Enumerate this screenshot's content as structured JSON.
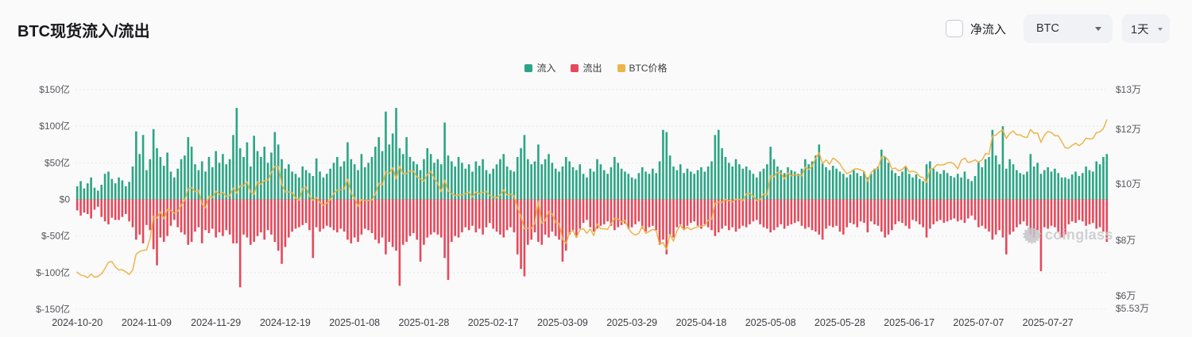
{
  "header": {
    "title": "BTC现货流入/流出"
  },
  "controls": {
    "net_flow_checkbox": {
      "label": "净流入",
      "checked": false
    },
    "coin_select": {
      "value": "BTC"
    },
    "interval_select": {
      "value": "1天"
    }
  },
  "watermark": {
    "text": "coinglass"
  },
  "chart_data": {
    "type": "bar+line",
    "start_date": "2024-10-20",
    "x_tick_interval_days": 20,
    "x_tick_labels": [
      "2024-10-20",
      "2024-11-09",
      "2024-11-29",
      "2024-12-19",
      "2025-01-08",
      "2025-01-28",
      "2025-02-17",
      "2025-03-09",
      "2025-03-29",
      "2025-04-18",
      "2025-05-08",
      "2025-05-28",
      "2025-06-17",
      "2025-07-07",
      "2025-07-27"
    ],
    "left_axis": {
      "unit": "亿",
      "range": [
        -150,
        150
      ],
      "ticks": [
        {
          "label": "$150亿",
          "value": 150
        },
        {
          "label": "$100亿",
          "value": 100
        },
        {
          "label": "$50亿",
          "value": 50
        },
        {
          "label": "$0",
          "value": 0
        },
        {
          "label": "$-50亿",
          "value": -50
        },
        {
          "label": "$-100亿",
          "value": -100
        },
        {
          "label": "$-150亿",
          "value": -150
        }
      ]
    },
    "right_axis": {
      "unit": "万",
      "ticks": [
        {
          "label": "$13万",
          "y": 113
        },
        {
          "label": "$12万",
          "y": 163
        },
        {
          "label": "$10万",
          "y": 232
        },
        {
          "label": "$8万",
          "y": 303
        },
        {
          "label": "$6万",
          "y": 373
        },
        {
          "label": "$5.53万",
          "y": 389
        }
      ]
    },
    "series": [
      {
        "name": "流入",
        "type": "bar",
        "color": "#2ca585",
        "axis": "left",
        "values": [
          18,
          25,
          15,
          22,
          30,
          16,
          12,
          20,
          35,
          38,
          28,
          22,
          30,
          26,
          18,
          24,
          45,
          93,
          62,
          88,
          40,
          55,
          96,
          70,
          58,
          46,
          64,
          38,
          30,
          42,
          55,
          60,
          85,
          72,
          48,
          40,
          52,
          38,
          58,
          44,
          66,
          50,
          62,
          48,
          55,
          88,
          125,
          70,
          58,
          78,
          45,
          87,
          66,
          58,
          72,
          50,
          64,
          92,
          75,
          55,
          42,
          48,
          38,
          35,
          30,
          45,
          40,
          36,
          32,
          56,
          38,
          30,
          35,
          42,
          50,
          58,
          45,
          52,
          78,
          55,
          48,
          40,
          62,
          44,
          50,
          58,
          72,
          85,
          66,
          120,
          75,
          90,
          125,
          70,
          62,
          85,
          58,
          52,
          48,
          40,
          55,
          70,
          62,
          50,
          55,
          48,
          105,
          60,
          52,
          45,
          58,
          50,
          42,
          48,
          38,
          52,
          46,
          55,
          40,
          35,
          42,
          48,
          55,
          62,
          45,
          40,
          38,
          58,
          70,
          88,
          55,
          48,
          52,
          75,
          48,
          55,
          62,
          50,
          42,
          38,
          45,
          58,
          52,
          44,
          40,
          48,
          35,
          30,
          42,
          38,
          55,
          48,
          40,
          35,
          44,
          58,
          50,
          42,
          38,
          35,
          30,
          28,
          36,
          44,
          38,
          35,
          42,
          36,
          52,
          95,
          92,
          60,
          45,
          40,
          48,
          36,
          42,
          38,
          35,
          40,
          44,
          38,
          45,
          52,
          88,
          95,
          70,
          58,
          50,
          45,
          55,
          48,
          42,
          45,
          40,
          35,
          30,
          38,
          42,
          48,
          72,
          55,
          45,
          40,
          36,
          44,
          40,
          38,
          35,
          42,
          55,
          48,
          52,
          60,
          75,
          50,
          44,
          40,
          46,
          42,
          38,
          35,
          30,
          34,
          40,
          36,
          32,
          38,
          30,
          35,
          42,
          45,
          68,
          58,
          50,
          40,
          36,
          32,
          38,
          44,
          35,
          30,
          34,
          28,
          25,
          48,
          52,
          42,
          38,
          35,
          40,
          36,
          32,
          30,
          35,
          30,
          38,
          28,
          25,
          32,
          52,
          44,
          55,
          58,
          95,
          60,
          48,
          100,
          42,
          55,
          48,
          40,
          36,
          34,
          38,
          62,
          45,
          50,
          35,
          40,
          44,
          38,
          42,
          36,
          30,
          30,
          28,
          34,
          38,
          32,
          36,
          45,
          40,
          38,
          52,
          48,
          58,
          62
        ]
      },
      {
        "name": "流出",
        "type": "bar",
        "color": "#e6495c",
        "axis": "left",
        "values": [
          -15,
          -22,
          -18,
          -20,
          -26,
          -14,
          -10,
          -24,
          -30,
          -34,
          -25,
          -28,
          -28,
          -24,
          -20,
          -30,
          -38,
          -55,
          -48,
          -60,
          -35,
          -42,
          -68,
          -90,
          -52,
          -58,
          -50,
          -36,
          -28,
          -38,
          -45,
          -48,
          -62,
          -58,
          -44,
          -38,
          -60,
          -42,
          -46,
          -40,
          -52,
          -45,
          -50,
          -42,
          -48,
          -60,
          -60,
          -120,
          -48,
          -52,
          -62,
          -58,
          -50,
          -45,
          -55,
          -42,
          -48,
          -58,
          -70,
          -88,
          -65,
          -52,
          -44,
          -40,
          -38,
          -35,
          -32,
          -42,
          -80,
          -38,
          -44,
          -40,
          -36,
          -38,
          -42,
          -45,
          -40,
          -44,
          -55,
          -60,
          -52,
          -58,
          -48,
          -40,
          -42,
          -46,
          -55,
          -60,
          -52,
          -75,
          -58,
          -65,
          -70,
          -118,
          -62,
          -58,
          -50,
          -46,
          -55,
          -85,
          -62,
          -52,
          -48,
          -45,
          -48,
          -52,
          -80,
          -110,
          -58,
          -50,
          -52,
          -45,
          -38,
          -42,
          -36,
          -45,
          -40,
          -48,
          -38,
          -32,
          -40,
          -44,
          -48,
          -52,
          -42,
          -38,
          -45,
          -75,
          -95,
          -105,
          -62,
          -55,
          -45,
          -58,
          -62,
          -48,
          -52,
          -44,
          -50,
          -55,
          -85,
          -70,
          -48,
          -42,
          -52,
          -40,
          -32,
          -28,
          -38,
          -44,
          -40,
          -36,
          -34,
          -30,
          -36,
          -42,
          -38,
          -35,
          -33,
          -40,
          -38,
          -34,
          -30,
          -40,
          -44,
          -38,
          -36,
          -42,
          -62,
          -55,
          -75,
          -48,
          -52,
          -38,
          -34,
          -40,
          -36,
          -32,
          -30,
          -36,
          -40,
          -34,
          -38,
          -42,
          -50,
          -45,
          -40,
          -36,
          -42,
          -38,
          -44,
          -40,
          -36,
          -38,
          -34,
          -30,
          -28,
          -34,
          -38,
          -40,
          -45,
          -42,
          -38,
          -34,
          -40,
          -36,
          -34,
          -32,
          -30,
          -36,
          -40,
          -38,
          -42,
          -44,
          -48,
          -55,
          -40,
          -36,
          -38,
          -36,
          -44,
          -48,
          -38,
          -32,
          -34,
          -38,
          -30,
          -32,
          -45,
          -30,
          -34,
          -36,
          -44,
          -52,
          -48,
          -42,
          -34,
          -30,
          -32,
          -36,
          -40,
          -28,
          -30,
          -34,
          -38,
          -52,
          -40,
          -34,
          -30,
          -28,
          -32,
          -30,
          -28,
          -26,
          -30,
          -28,
          -32,
          -26,
          -22,
          -28,
          -38,
          -36,
          -40,
          -44,
          -55,
          -48,
          -42,
          -52,
          -75,
          -48,
          -44,
          -38,
          -34,
          -30,
          -36,
          -48,
          -52,
          -42,
          -98,
          -38,
          -40,
          -36,
          -38,
          -44,
          -52,
          -48,
          -34,
          -30,
          -32,
          -28,
          -30,
          -36,
          -34,
          -32,
          -40,
          -38,
          -44,
          -58
        ]
      },
      {
        "name": "BTC价格",
        "type": "line",
        "color": "#edb44a",
        "axis": "right",
        "values": [
          6.85,
          6.75,
          6.72,
          6.65,
          6.78,
          6.67,
          6.7,
          6.79,
          6.98,
          7.21,
          7.23,
          7.03,
          6.93,
          6.94,
          6.86,
          6.77,
          6.93,
          7.5,
          7.59,
          7.64,
          7.65,
          8.06,
          8.87,
          8.8,
          9.03,
          8.77,
          9.11,
          9.08,
          8.98,
          9.05,
          9.26,
          9.45,
          9.85,
          9.9,
          9.75,
          9.8,
          9.3,
          9.17,
          9.59,
          9.54,
          9.77,
          9.65,
          9.72,
          9.58,
          9.6,
          9.88,
          9.7,
          9.96,
          9.97,
          10.11,
          9.74,
          9.65,
          10.11,
          10.02,
          10.15,
          10.16,
          10.45,
          10.66,
          10.66,
          10.02,
          9.74,
          9.74,
          9.72,
          9.52,
          9.44,
          9.86,
          9.92,
          9.59,
          9.44,
          9.54,
          9.36,
          9.26,
          9.34,
          9.46,
          9.69,
          9.81,
          9.82,
          9.84,
          10.21,
          9.7,
          9.52,
          9.22,
          9.47,
          9.44,
          9.43,
          9.45,
          9.66,
          10.05,
          9.99,
          10.47,
          10.41,
          10.62,
          10.21,
          10.67,
          10.39,
          10.4,
          10.49,
          10.49,
          10.28,
          10.21,
          10.13,
          10.37,
          10.48,
          10.23,
          10.05,
          9.75,
          10.17,
          9.77,
          9.68,
          9.61,
          9.63,
          9.64,
          9.68,
          9.74,
          9.56,
          9.74,
          9.68,
          9.72,
          9.76,
          9.61,
          9.56,
          9.53,
          9.63,
          9.81,
          9.63,
          9.66,
          9.61,
          9.17,
          8.87,
          8.41,
          8.44,
          8.43,
          8.61,
          9.41,
          8.61,
          8.71,
          9.03,
          8.96,
          8.64,
          8.61,
          8.05,
          7.88,
          8.27,
          8.36,
          8.1,
          8.38,
          8.42,
          8.25,
          8.41,
          8.17,
          8.59,
          8.42,
          8.41,
          8.39,
          8.6,
          8.79,
          8.77,
          8.66,
          8.72,
          8.42,
          8.26,
          8.19,
          8.25,
          8.51,
          8.25,
          8.32,
          8.39,
          8.35,
          7.85,
          7.92,
          7.66,
          8.21,
          7.97,
          8.35,
          8.55,
          8.37,
          8.47,
          8.38,
          8.45,
          8.48,
          8.51,
          8.53,
          8.72,
          8.75,
          9.34,
          9.37,
          9.37,
          9.47,
          9.42,
          9.38,
          9.48,
          9.47,
          9.43,
          9.67,
          9.69,
          9.59,
          9.43,
          9.46,
          9.67,
          9.63,
          10.33,
          10.29,
          10.45,
          10.42,
          10.21,
          10.43,
          10.32,
          10.37,
          10.33,
          10.32,
          10.64,
          10.55,
          10.67,
          10.95,
          11.16,
          10.76,
          10.9,
          10.74,
          10.96,
          10.88,
          10.76,
          10.55,
          10.4,
          10.45,
          10.56,
          10.58,
          10.53,
          10.48,
          10.12,
          10.44,
          10.56,
          10.58,
          11.0,
          11.02,
          10.88,
          10.57,
          10.6,
          10.5,
          10.55,
          10.68,
          10.46,
          10.49,
          10.45,
          10.3,
          10.25,
          10.08,
          10.56,
          10.59,
          10.72,
          10.71,
          10.72,
          10.79,
          10.81,
          10.74,
          10.57,
          10.88,
          10.96,
          10.8,
          10.83,
          10.9,
          10.81,
          10.89,
          11.12,
          11.1,
          11.76,
          11.79,
          11.91,
          11.98,
          11.67,
          11.85,
          11.94,
          11.8,
          11.8,
          11.72,
          11.7,
          11.99,
          11.85,
          11.87,
          11.53,
          11.79,
          11.92,
          11.88,
          11.77,
          11.77,
          11.55,
          11.33,
          11.32,
          11.42,
          11.5,
          11.41,
          11.5,
          11.68,
          11.65,
          11.67,
          11.88,
          11.91,
          12.03,
          12.34
        ]
      }
    ]
  }
}
